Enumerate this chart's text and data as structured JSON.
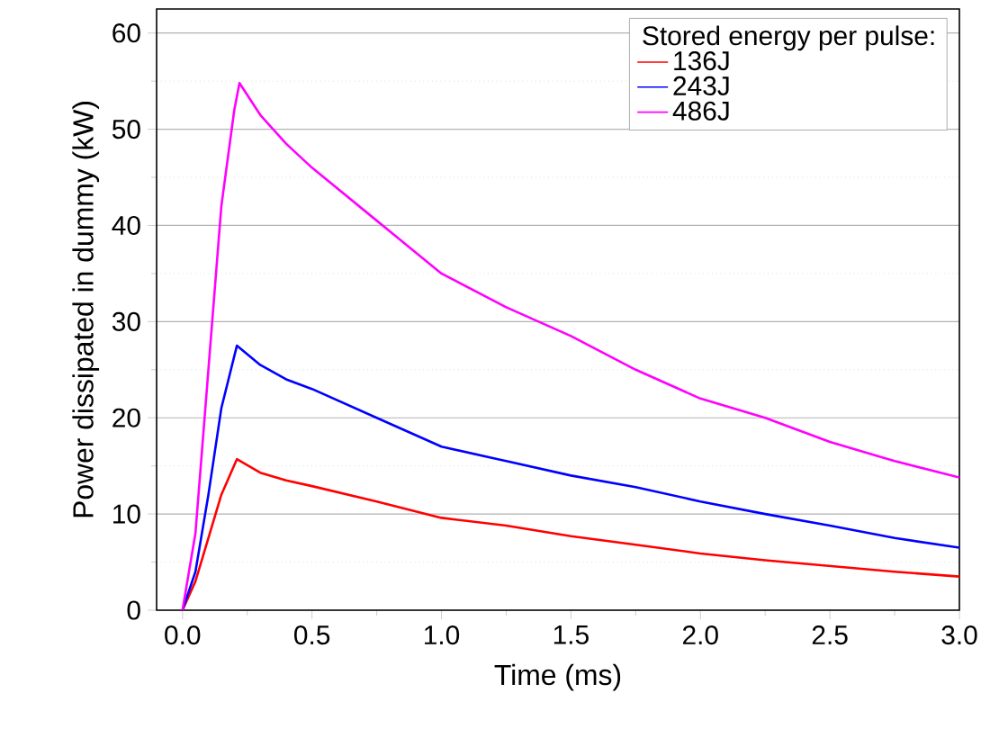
{
  "chart_data": {
    "type": "line",
    "xlabel": "Time (ms)",
    "ylabel": "Power dissipated in dummy (kW)",
    "legend_title": "Stored energy per pulse:",
    "xlim": [
      -0.1,
      3.0
    ],
    "ylim": [
      0,
      62.5
    ],
    "xticks": [
      {
        "value": 0,
        "label": "0.0"
      },
      0.5,
      {
        "value": 1,
        "label": "1.0"
      },
      1.5,
      {
        "value": 2,
        "label": "2.0"
      },
      2.5,
      {
        "value": 3,
        "label": "3.0"
      }
    ],
    "yticks": [
      0,
      10,
      20,
      30,
      40,
      50,
      60
    ],
    "grid": "y",
    "legend": "top right",
    "marker": "none",
    "line_style": "solid",
    "series": [
      {
        "name": "136J",
        "color": "#ff0000",
        "x": [
          0,
          0.05,
          0.1,
          0.15,
          0.21,
          0.3,
          0.4,
          0.5,
          0.75,
          1.0,
          1.25,
          1.5,
          1.75,
          2.0,
          2.25,
          2.5,
          2.75,
          3.0
        ],
        "values": [
          0,
          3,
          7.5,
          12,
          15.7,
          14.3,
          13.5,
          12.9,
          11.3,
          9.6,
          8.8,
          7.7,
          6.8,
          5.9,
          5.2,
          4.6,
          4.0,
          3.5
        ]
      },
      {
        "name": "243J",
        "color": "#0000ff",
        "x": [
          0,
          0.05,
          0.1,
          0.15,
          0.21,
          0.3,
          0.4,
          0.5,
          0.75,
          1.0,
          1.25,
          1.5,
          1.75,
          2.0,
          2.25,
          2.5,
          2.75,
          3.0
        ],
        "values": [
          0,
          4,
          12,
          21,
          27.5,
          25.5,
          24,
          23,
          20,
          17,
          15.5,
          14,
          12.8,
          11.3,
          10,
          8.8,
          7.5,
          6.5
        ]
      },
      {
        "name": "486J",
        "color": "#ff00ff",
        "x": [
          0,
          0.05,
          0.1,
          0.15,
          0.2,
          0.22,
          0.3,
          0.4,
          0.5,
          0.75,
          1.0,
          1.25,
          1.5,
          1.75,
          2.0,
          2.25,
          2.5,
          2.75,
          3.0
        ],
        "values": [
          0,
          8,
          25,
          42,
          52,
          54.8,
          51.5,
          48.5,
          46,
          40.5,
          35,
          31.5,
          28.5,
          25,
          22,
          20,
          17.5,
          15.5,
          13.8
        ]
      }
    ]
  }
}
